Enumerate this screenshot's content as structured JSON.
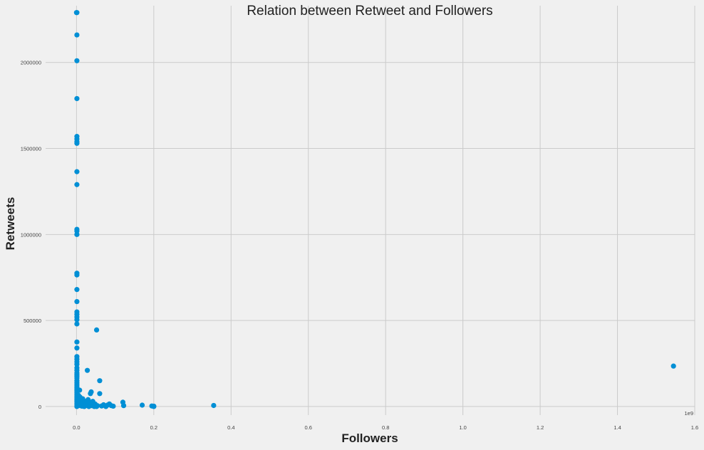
{
  "chart_data": {
    "type": "scatter",
    "title": "Relation between Retweet and Followers",
    "xlabel": "Followers",
    "ylabel": "Retweets",
    "x_offset_label": "1e9",
    "xlim": [
      -0.08,
      1.6
    ],
    "ylim": [
      -50000,
      2330000
    ],
    "xticks": [
      0.0,
      0.2,
      0.4,
      0.6,
      0.8,
      1.0,
      1.2,
      1.4,
      1.6
    ],
    "xtick_labels": [
      "0.0",
      "0.2",
      "0.4",
      "0.6",
      "0.8",
      "1.0",
      "1.2",
      "1.4",
      "1.6"
    ],
    "yticks": [
      0,
      500000,
      1000000,
      1500000,
      2000000
    ],
    "ytick_labels": [
      "0",
      "500000",
      "1000000",
      "1500000",
      "2000000"
    ],
    "grid": true,
    "marker_color": "#008fd5",
    "background_color": "#f0f0f0",
    "grid_color": "#cbcbcb",
    "x_units_note": "x values in units of 1e9 followers",
    "points": [
      [
        0.0,
        2290000
      ],
      [
        0.001,
        2290000
      ],
      [
        0.001,
        2160000
      ],
      [
        0.001,
        2010000
      ],
      [
        0.001,
        1790000
      ],
      [
        0.001,
        1570000
      ],
      [
        0.001,
        1555000
      ],
      [
        0.001,
        1540000
      ],
      [
        0.001,
        1530000
      ],
      [
        0.001,
        1365000
      ],
      [
        0.001,
        1290000
      ],
      [
        0.001,
        1030000
      ],
      [
        0.001,
        1020000
      ],
      [
        0.001,
        1000000
      ],
      [
        0.001,
        775000
      ],
      [
        0.001,
        765000
      ],
      [
        0.001,
        680000
      ],
      [
        0.001,
        610000
      ],
      [
        0.001,
        550000
      ],
      [
        0.001,
        535000
      ],
      [
        0.001,
        520000
      ],
      [
        0.001,
        505000
      ],
      [
        0.001,
        480000
      ],
      [
        0.001,
        375000
      ],
      [
        0.001,
        340000
      ],
      [
        0.001,
        290000
      ],
      [
        0.001,
        275000
      ],
      [
        0.001,
        260000
      ],
      [
        0.001,
        245000
      ],
      [
        0.001,
        225000
      ],
      [
        0.001,
        210000
      ],
      [
        0.001,
        195000
      ],
      [
        0.001,
        185000
      ],
      [
        0.001,
        175000
      ],
      [
        0.001,
        165000
      ],
      [
        0.001,
        150000
      ],
      [
        0.001,
        140000
      ],
      [
        0.001,
        130000
      ],
      [
        0.001,
        120000
      ],
      [
        0.001,
        110000
      ],
      [
        0.001,
        100000
      ],
      [
        0.001,
        90000
      ],
      [
        0.001,
        80000
      ],
      [
        0.001,
        70000
      ],
      [
        0.001,
        60000
      ],
      [
        0.001,
        50000
      ],
      [
        0.001,
        40000
      ],
      [
        0.001,
        30000
      ],
      [
        0.001,
        20000
      ],
      [
        0.001,
        10000
      ],
      [
        0.001,
        0
      ],
      [
        0.002,
        5000
      ],
      [
        0.003,
        25000
      ],
      [
        0.004,
        45000
      ],
      [
        0.005,
        65000
      ],
      [
        0.006,
        15000
      ],
      [
        0.007,
        35000
      ],
      [
        0.008,
        95000
      ],
      [
        0.009,
        55000
      ],
      [
        0.01,
        5000
      ],
      [
        0.012,
        20000
      ],
      [
        0.014,
        2000
      ],
      [
        0.016,
        45000
      ],
      [
        0.018,
        10000
      ],
      [
        0.02,
        0
      ],
      [
        0.022,
        30000
      ],
      [
        0.024,
        5000
      ],
      [
        0.026,
        15000
      ],
      [
        0.028,
        210000
      ],
      [
        0.03,
        40000
      ],
      [
        0.032,
        0
      ],
      [
        0.034,
        20000
      ],
      [
        0.036,
        75000
      ],
      [
        0.038,
        85000
      ],
      [
        0.04,
        5000
      ],
      [
        0.042,
        30000
      ],
      [
        0.044,
        10000
      ],
      [
        0.046,
        0
      ],
      [
        0.048,
        15000
      ],
      [
        0.05,
        2000
      ],
      [
        0.052,
        0
      ],
      [
        0.054,
        5000
      ],
      [
        0.052,
        445000
      ],
      [
        0.06,
        150000
      ],
      [
        0.06,
        75000
      ],
      [
        0.065,
        3000
      ],
      [
        0.07,
        10000
      ],
      [
        0.076,
        0
      ],
      [
        0.08,
        8000
      ],
      [
        0.085,
        15000
      ],
      [
        0.09,
        5000
      ],
      [
        0.095,
        2000
      ],
      [
        0.12,
        25000
      ],
      [
        0.122,
        5000
      ],
      [
        0.17,
        8000
      ],
      [
        0.195,
        3000
      ],
      [
        0.2,
        2000
      ],
      [
        0.2,
        0
      ],
      [
        0.355,
        6000
      ],
      [
        1.545,
        235000
      ]
    ]
  }
}
